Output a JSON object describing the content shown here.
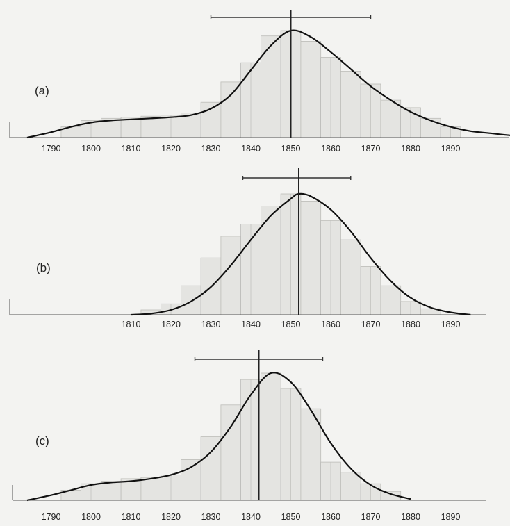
{
  "colors": {
    "background": "#f3f3f1",
    "bars": "#e4e4e1",
    "curve": "#111111"
  },
  "chart_data": [
    {
      "type": "area",
      "panel_label": "(a)",
      "x_ticks": [
        "1790",
        "1800",
        "1810",
        "1820",
        "1830",
        "1840",
        "1850",
        "1860",
        "1870",
        "1880",
        "1890"
      ],
      "xlim": [
        1781,
        1911
      ],
      "x_range_bar": [
        1830,
        1870
      ],
      "vertical_marker": 1850,
      "histogram": {
        "bin_width": 5,
        "bins": [
          {
            "x": 1795,
            "y": 0.1
          },
          {
            "x": 1800,
            "y": 0.16
          },
          {
            "x": 1805,
            "y": 0.18
          },
          {
            "x": 1810,
            "y": 0.19
          },
          {
            "x": 1815,
            "y": 0.2
          },
          {
            "x": 1820,
            "y": 0.21
          },
          {
            "x": 1825,
            "y": 0.23
          },
          {
            "x": 1830,
            "y": 0.33
          },
          {
            "x": 1835,
            "y": 0.52
          },
          {
            "x": 1840,
            "y": 0.7
          },
          {
            "x": 1845,
            "y": 0.95
          },
          {
            "x": 1850,
            "y": 1.0
          },
          {
            "x": 1855,
            "y": 0.9
          },
          {
            "x": 1860,
            "y": 0.75
          },
          {
            "x": 1865,
            "y": 0.62
          },
          {
            "x": 1870,
            "y": 0.5
          },
          {
            "x": 1875,
            "y": 0.35
          },
          {
            "x": 1880,
            "y": 0.28
          },
          {
            "x": 1885,
            "y": 0.18
          },
          {
            "x": 1890,
            "y": 0.1
          }
        ]
      },
      "curve": [
        [
          1784,
          0.0
        ],
        [
          1790,
          0.05
        ],
        [
          1795,
          0.1
        ],
        [
          1800,
          0.14
        ],
        [
          1805,
          0.16
        ],
        [
          1810,
          0.17
        ],
        [
          1815,
          0.18
        ],
        [
          1820,
          0.19
        ],
        [
          1825,
          0.21
        ],
        [
          1830,
          0.27
        ],
        [
          1835,
          0.4
        ],
        [
          1840,
          0.63
        ],
        [
          1845,
          0.86
        ],
        [
          1850,
          1.0
        ],
        [
          1855,
          0.94
        ],
        [
          1860,
          0.8
        ],
        [
          1865,
          0.64
        ],
        [
          1870,
          0.48
        ],
        [
          1875,
          0.35
        ],
        [
          1880,
          0.24
        ],
        [
          1885,
          0.16
        ],
        [
          1890,
          0.1
        ],
        [
          1895,
          0.06
        ],
        [
          1900,
          0.04
        ],
        [
          1905,
          0.02
        ],
        [
          1909,
          0.01
        ]
      ]
    },
    {
      "type": "area",
      "panel_label": "(b)",
      "x_ticks": [
        "1810",
        "1820",
        "1830",
        "1840",
        "1850",
        "1860",
        "1870",
        "1880",
        "1890"
      ],
      "xlim": [
        1781,
        1911
      ],
      "x_range_bar": [
        1838,
        1865
      ],
      "vertical_marker": 1852,
      "histogram": {
        "bin_width": 5,
        "bins": [
          {
            "x": 1815,
            "y": 0.04
          },
          {
            "x": 1820,
            "y": 0.09
          },
          {
            "x": 1825,
            "y": 0.24
          },
          {
            "x": 1830,
            "y": 0.47
          },
          {
            "x": 1835,
            "y": 0.65
          },
          {
            "x": 1840,
            "y": 0.75
          },
          {
            "x": 1845,
            "y": 0.9
          },
          {
            "x": 1850,
            "y": 1.0
          },
          {
            "x": 1855,
            "y": 0.94
          },
          {
            "x": 1860,
            "y": 0.78
          },
          {
            "x": 1865,
            "y": 0.62
          },
          {
            "x": 1870,
            "y": 0.4
          },
          {
            "x": 1875,
            "y": 0.24
          },
          {
            "x": 1880,
            "y": 0.11
          },
          {
            "x": 1885,
            "y": 0.05
          }
        ]
      },
      "curve": [
        [
          1810,
          0.0
        ],
        [
          1815,
          0.01
        ],
        [
          1820,
          0.04
        ],
        [
          1825,
          0.11
        ],
        [
          1830,
          0.23
        ],
        [
          1835,
          0.41
        ],
        [
          1840,
          0.62
        ],
        [
          1845,
          0.82
        ],
        [
          1850,
          0.96
        ],
        [
          1852,
          1.0
        ],
        [
          1855,
          0.98
        ],
        [
          1860,
          0.87
        ],
        [
          1865,
          0.69
        ],
        [
          1870,
          0.47
        ],
        [
          1875,
          0.28
        ],
        [
          1880,
          0.14
        ],
        [
          1885,
          0.06
        ],
        [
          1890,
          0.02
        ],
        [
          1895,
          0.0
        ]
      ]
    },
    {
      "type": "area",
      "panel_label": "(c)",
      "x_ticks": [
        "1790",
        "1800",
        "1810",
        "1820",
        "1830",
        "1840",
        "1850",
        "1860",
        "1870",
        "1880",
        "1890"
      ],
      "xlim": [
        1781,
        1911
      ],
      "x_range_bar": [
        1826,
        1858
      ],
      "vertical_marker": 1842,
      "histogram": {
        "bin_width": 5,
        "bins": [
          {
            "x": 1795,
            "y": 0.08
          },
          {
            "x": 1800,
            "y": 0.13
          },
          {
            "x": 1805,
            "y": 0.15
          },
          {
            "x": 1810,
            "y": 0.17
          },
          {
            "x": 1815,
            "y": 0.18
          },
          {
            "x": 1820,
            "y": 0.2
          },
          {
            "x": 1825,
            "y": 0.32
          },
          {
            "x": 1830,
            "y": 0.5
          },
          {
            "x": 1835,
            "y": 0.75
          },
          {
            "x": 1840,
            "y": 0.95
          },
          {
            "x": 1845,
            "y": 1.0
          },
          {
            "x": 1850,
            "y": 0.88
          },
          {
            "x": 1855,
            "y": 0.72
          },
          {
            "x": 1860,
            "y": 0.3
          },
          {
            "x": 1865,
            "y": 0.22
          },
          {
            "x": 1870,
            "y": 0.13
          },
          {
            "x": 1875,
            "y": 0.07
          }
        ]
      },
      "curve": [
        [
          1784,
          0.0
        ],
        [
          1790,
          0.04
        ],
        [
          1795,
          0.08
        ],
        [
          1800,
          0.12
        ],
        [
          1805,
          0.14
        ],
        [
          1810,
          0.15
        ],
        [
          1815,
          0.17
        ],
        [
          1820,
          0.2
        ],
        [
          1825,
          0.26
        ],
        [
          1830,
          0.38
        ],
        [
          1835,
          0.58
        ],
        [
          1840,
          0.83
        ],
        [
          1845,
          1.0
        ],
        [
          1850,
          0.93
        ],
        [
          1855,
          0.71
        ],
        [
          1860,
          0.45
        ],
        [
          1865,
          0.25
        ],
        [
          1870,
          0.12
        ],
        [
          1875,
          0.05
        ],
        [
          1880,
          0.01
        ]
      ]
    }
  ]
}
